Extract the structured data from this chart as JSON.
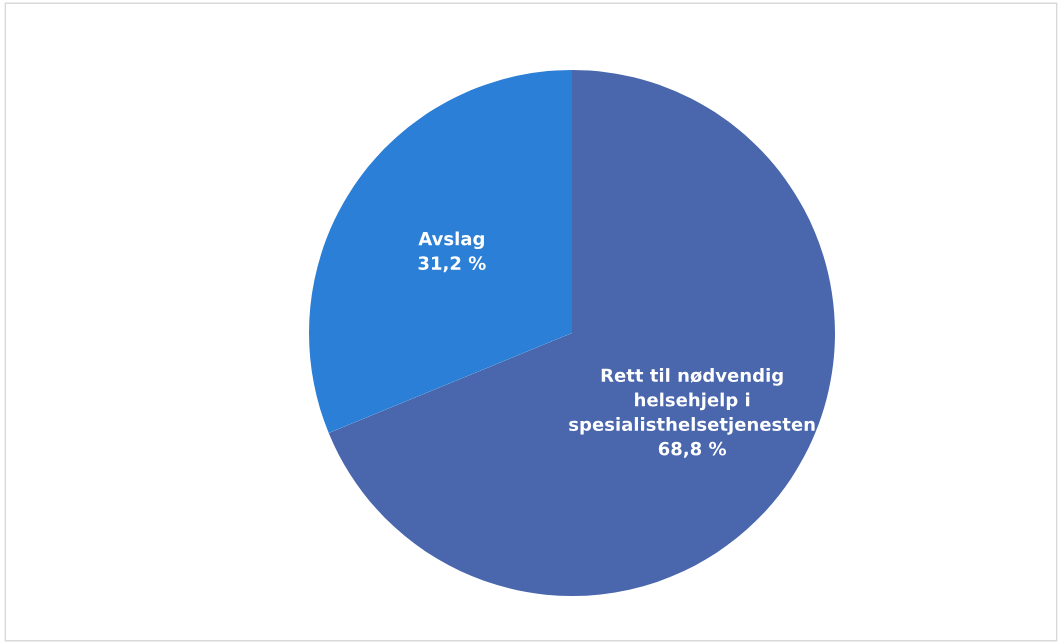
{
  "chart_data": {
    "type": "pie",
    "categories": [
      "Rett til nødvendig\nhelsehjelp i\nspesialisthelsetjenesten",
      "Avslag"
    ],
    "values": [
      68.8,
      31.2
    ],
    "value_labels": [
      "68,8 %",
      "31,2 %"
    ],
    "colors": [
      "#4a67ad",
      "#2b7fd6"
    ],
    "legend": false
  }
}
